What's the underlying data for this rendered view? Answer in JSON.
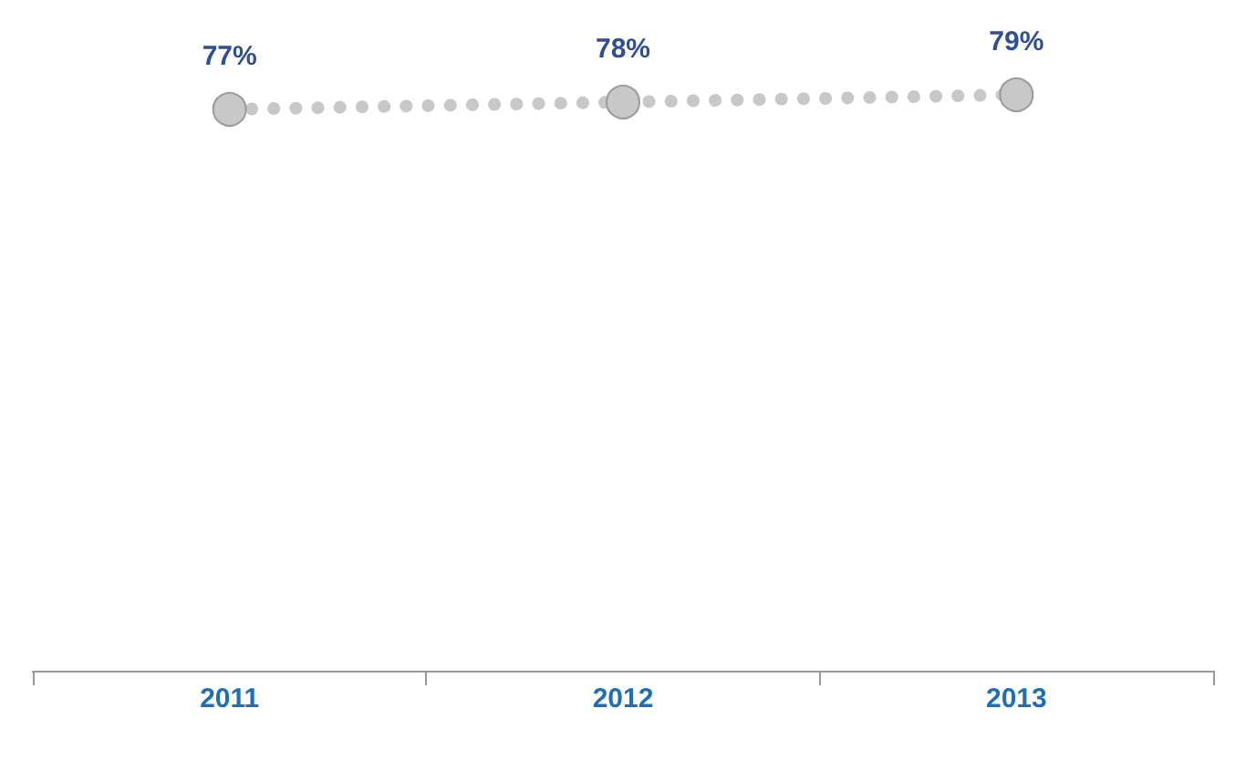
{
  "chart_data": {
    "type": "line",
    "categories": [
      "2011",
      "2012",
      "2013"
    ],
    "series": [
      {
        "color": "#c8c8c8",
        "values": [
          77,
          78,
          79
        ],
        "value_labels": [
          "77%",
          "78%",
          "79%"
        ]
      }
    ],
    "marker": "circle",
    "line_style": "dotted"
  }
}
